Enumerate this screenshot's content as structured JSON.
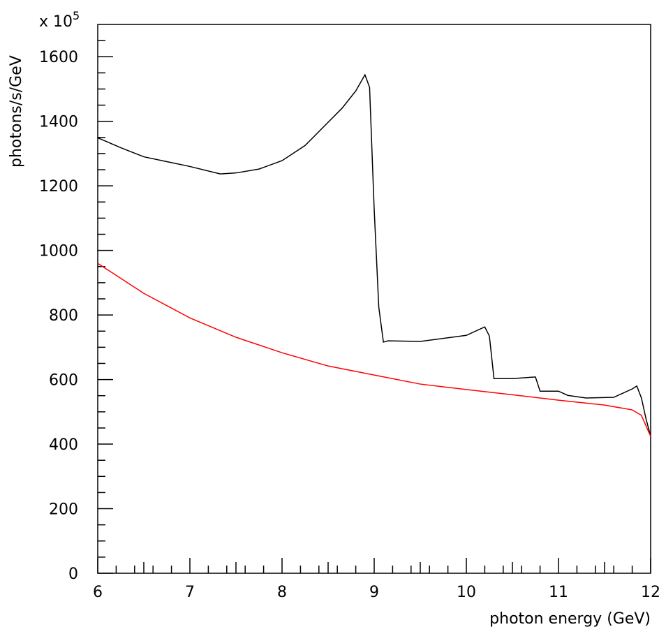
{
  "chart_data": {
    "type": "line",
    "y_label": "photons/s/GeV",
    "x_label": "photon energy (GeV)",
    "y_multiplier": "x 10",
    "y_multiplier_exp": "5",
    "xlim": [
      6,
      12
    ],
    "ylim": [
      0,
      1700
    ],
    "xticks": [
      6,
      7,
      8,
      9,
      10,
      11,
      12
    ],
    "yticks": [
      0,
      200,
      400,
      600,
      800,
      1000,
      1200,
      1400,
      1600
    ],
    "xminorticks": [
      6.2,
      6.4,
      6.5,
      6.6,
      6.8,
      7.2,
      7.4,
      7.5,
      7.6,
      7.8,
      8.2,
      8.4,
      8.5,
      8.6,
      8.8,
      9.2,
      9.4,
      9.5,
      9.6,
      9.8,
      10.2,
      10.4,
      10.5,
      10.6,
      10.8,
      11.2,
      11.4,
      11.5,
      11.6,
      11.8
    ],
    "yminorticks": [
      50,
      100,
      150,
      250,
      300,
      350,
      450,
      500,
      550,
      650,
      700,
      750,
      850,
      900,
      950,
      1050,
      1100,
      1150,
      1250,
      1300,
      1350,
      1450,
      1500,
      1550,
      1650
    ],
    "series": [
      {
        "color": "#000000",
        "x": [
          6.0,
          6.25,
          6.5,
          6.75,
          7.0,
          7.33,
          7.5,
          7.75,
          8.0,
          8.25,
          8.5,
          8.65,
          8.8,
          8.9,
          8.95,
          9.0,
          9.05,
          9.1,
          9.15,
          9.5,
          10.0,
          10.2,
          10.25,
          10.3,
          10.5,
          10.75,
          10.8,
          11.0,
          11.1,
          11.3,
          11.6,
          11.8,
          11.85,
          11.9,
          11.95,
          12.0
        ],
        "values": [
          1349,
          1318,
          1290,
          1275,
          1260,
          1237,
          1240,
          1252,
          1278,
          1325,
          1397,
          1440,
          1494,
          1544,
          1505,
          1127,
          824,
          716,
          720,
          718,
          737,
          763,
          735,
          603,
          603,
          608,
          564,
          564,
          551,
          543,
          545,
          571,
          580,
          543,
          478,
          424
        ]
      },
      {
        "color": "#ff0000",
        "x": [
          6.0,
          6.5,
          7.0,
          7.5,
          8.0,
          8.5,
          9.0,
          9.5,
          10.0,
          10.5,
          11.0,
          11.5,
          11.8,
          11.9,
          12.0
        ],
        "values": [
          960,
          867,
          791,
          731,
          683,
          642,
          614,
          586,
          569,
          553,
          536,
          521,
          506,
          489,
          424
        ]
      }
    ]
  }
}
